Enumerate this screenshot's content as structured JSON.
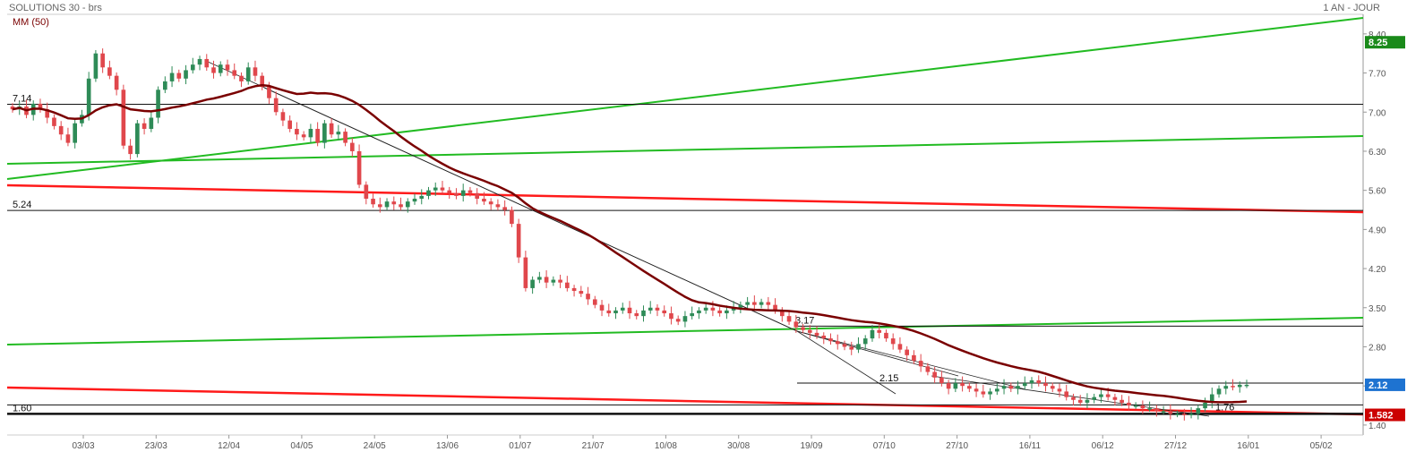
{
  "header": {
    "title": "SOLUTIONS 30 - brs",
    "period": "1 AN - JOUR",
    "indicator_legend": "MM (50)"
  },
  "colors": {
    "up_candle": "#2e8b57",
    "down_candle": "#e0474c",
    "moving_average": "#7a0000",
    "support_lines": "#ff1a1a",
    "resistance_lines": "#22bb22",
    "price_tag_last": "#1e73d1",
    "price_tag_ma": "#1a8a1a",
    "price_tag_low": "#cc0000"
  },
  "chart_data": {
    "type": "candlestick",
    "x_ticks": [
      "03/03",
      "23/03",
      "12/04",
      "04/05",
      "24/05",
      "13/06",
      "01/07",
      "21/07",
      "10/08",
      "30/08",
      "19/09",
      "07/10",
      "27/10",
      "16/11",
      "06/12",
      "27/12",
      "16/01",
      "05/02"
    ],
    "y_ticks": [
      8.4,
      7.7,
      7.0,
      6.3,
      5.6,
      4.9,
      4.2,
      3.5,
      2.8,
      2.1,
      1.4
    ],
    "ylim": [
      1.35,
      8.75
    ],
    "price_tags": {
      "last": "2.12",
      "ma": "8.25",
      "low": "1.582"
    },
    "level_labels": [
      {
        "text": "7.14",
        "value": 7.14
      },
      {
        "text": "5.24",
        "value": 5.24
      },
      {
        "text": "3.17",
        "value": 3.17
      },
      {
        "text": "2.15",
        "value": 2.15
      },
      {
        "text": "1.76",
        "value": 1.76
      },
      {
        "text": "1.60",
        "value": 1.6
      }
    ],
    "horizontal_levels": [
      7.14,
      5.24,
      3.17,
      2.15,
      1.76,
      1.6
    ],
    "closes": [
      7.05,
      7.1,
      6.95,
      7.15,
      7.05,
      6.9,
      6.75,
      6.6,
      6.45,
      6.8,
      6.95,
      7.6,
      8.05,
      7.8,
      7.65,
      7.4,
      6.4,
      6.25,
      6.8,
      6.7,
      6.9,
      7.4,
      7.55,
      7.7,
      7.6,
      7.75,
      7.85,
      7.95,
      7.8,
      7.7,
      7.85,
      7.75,
      7.65,
      7.55,
      7.8,
      7.65,
      7.45,
      7.25,
      7.0,
      6.85,
      6.7,
      6.6,
      6.55,
      6.7,
      6.45,
      6.8,
      6.6,
      6.65,
      6.45,
      6.3,
      5.7,
      5.45,
      5.35,
      5.3,
      5.4,
      5.35,
      5.3,
      5.4,
      5.45,
      5.5,
      5.6,
      5.65,
      5.6,
      5.55,
      5.5,
      5.6,
      5.55,
      5.45,
      5.4,
      5.35,
      5.3,
      5.25,
      5.0,
      4.4,
      3.85,
      4.0,
      4.05,
      3.95,
      4.0,
      3.95,
      3.85,
      3.8,
      3.75,
      3.65,
      3.55,
      3.45,
      3.4,
      3.45,
      3.5,
      3.4,
      3.35,
      3.45,
      3.5,
      3.45,
      3.4,
      3.3,
      3.25,
      3.35,
      3.4,
      3.45,
      3.5,
      3.45,
      3.4,
      3.45,
      3.5,
      3.55,
      3.6,
      3.55,
      3.6,
      3.55,
      3.45,
      3.35,
      3.25,
      3.15,
      3.1,
      3.05,
      3.0,
      2.95,
      2.9,
      2.85,
      2.8,
      2.75,
      2.85,
      2.95,
      3.1,
      3.05,
      2.95,
      2.85,
      2.75,
      2.65,
      2.55,
      2.45,
      2.35,
      2.25,
      2.15,
      2.05,
      2.15,
      2.1,
      2.05,
      2.0,
      1.95,
      2.0,
      2.05,
      2.1,
      2.05,
      2.1,
      2.15,
      2.2,
      2.15,
      2.1,
      2.05,
      2.0,
      1.9,
      1.85,
      1.8,
      1.85,
      1.9,
      1.95,
      1.9,
      1.85,
      1.8,
      1.75,
      1.75,
      1.7,
      1.7,
      1.65,
      1.65,
      1.6,
      1.6,
      1.58,
      1.6,
      1.7,
      1.8,
      1.95,
      2.05,
      2.1,
      2.08,
      2.12,
      2.12
    ]
  }
}
